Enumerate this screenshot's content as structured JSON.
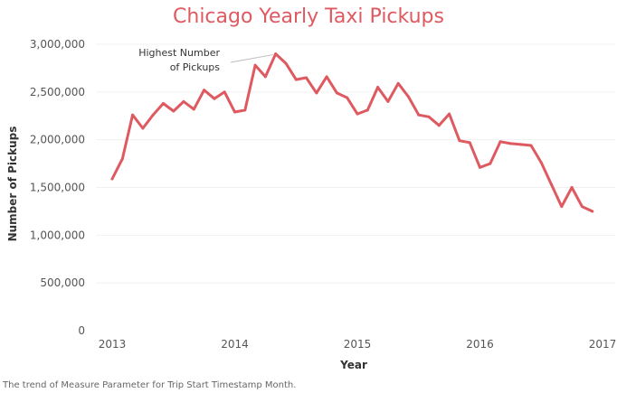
{
  "chart_data": {
    "type": "line",
    "title": "Chicago Yearly Taxi Pickups",
    "xlabel": "Year",
    "ylabel": "Number of Pickups",
    "caption": "The trend of Measure Parameter for Trip Start Timestamp Month.",
    "line_color": "#de5a60",
    "title_color": "#de5a60",
    "grid": true,
    "xlim": [
      2013,
      2017
    ],
    "ylim": [
      0,
      3000000
    ],
    "x_ticks": [
      {
        "value": 2013,
        "label": "2013"
      },
      {
        "value": 2014,
        "label": "2014"
      },
      {
        "value": 2015,
        "label": "2015"
      },
      {
        "value": 2016,
        "label": "2016"
      },
      {
        "value": 2017,
        "label": "2017"
      }
    ],
    "y_ticks": [
      {
        "value": 0,
        "label": "0"
      },
      {
        "value": 500000,
        "label": "500,000"
      },
      {
        "value": 1000000,
        "label": "1,000,000"
      },
      {
        "value": 1500000,
        "label": "1,500,000"
      },
      {
        "value": 2000000,
        "label": "2,000,000"
      },
      {
        "value": 2500000,
        "label": "2,500,000"
      },
      {
        "value": 3000000,
        "label": "3,000,000"
      }
    ],
    "series": [
      {
        "x": [
          "2013-01",
          "2013-02",
          "2013-03",
          "2013-04",
          "2013-05",
          "2013-06",
          "2013-07",
          "2013-08",
          "2013-09",
          "2013-10",
          "2013-11",
          "2013-12",
          "2014-01",
          "2014-02",
          "2014-03",
          "2014-04",
          "2014-05",
          "2014-06",
          "2014-07",
          "2014-08",
          "2014-09",
          "2014-10",
          "2014-11",
          "2014-12",
          "2015-01",
          "2015-02",
          "2015-03",
          "2015-04",
          "2015-05",
          "2015-06",
          "2015-07",
          "2015-08",
          "2015-09",
          "2015-10",
          "2015-11",
          "2015-12",
          "2016-01",
          "2016-02",
          "2016-03",
          "2016-04",
          "2016-05",
          "2016-06",
          "2016-07",
          "2016-08",
          "2016-09",
          "2016-10",
          "2016-11",
          "2016-12"
        ],
        "values": [
          1590000,
          1800000,
          2260000,
          2120000,
          2260000,
          2380000,
          2300000,
          2400000,
          2320000,
          2520000,
          2430000,
          2500000,
          2290000,
          2310000,
          2780000,
          2660000,
          2900000,
          2800000,
          2630000,
          2650000,
          2490000,
          2660000,
          2490000,
          2440000,
          2270000,
          2310000,
          2550000,
          2400000,
          2590000,
          2450000,
          2260000,
          2240000,
          2150000,
          2270000,
          1990000,
          1970000,
          1710000,
          1750000,
          1980000,
          1960000,
          1950000,
          1940000,
          1760000,
          1530000,
          1300000,
          1500000,
          1300000,
          1250000
        ]
      }
    ],
    "annotation": {
      "lines": [
        "Highest Number",
        "of Pickups"
      ],
      "target": "2014-05"
    }
  }
}
